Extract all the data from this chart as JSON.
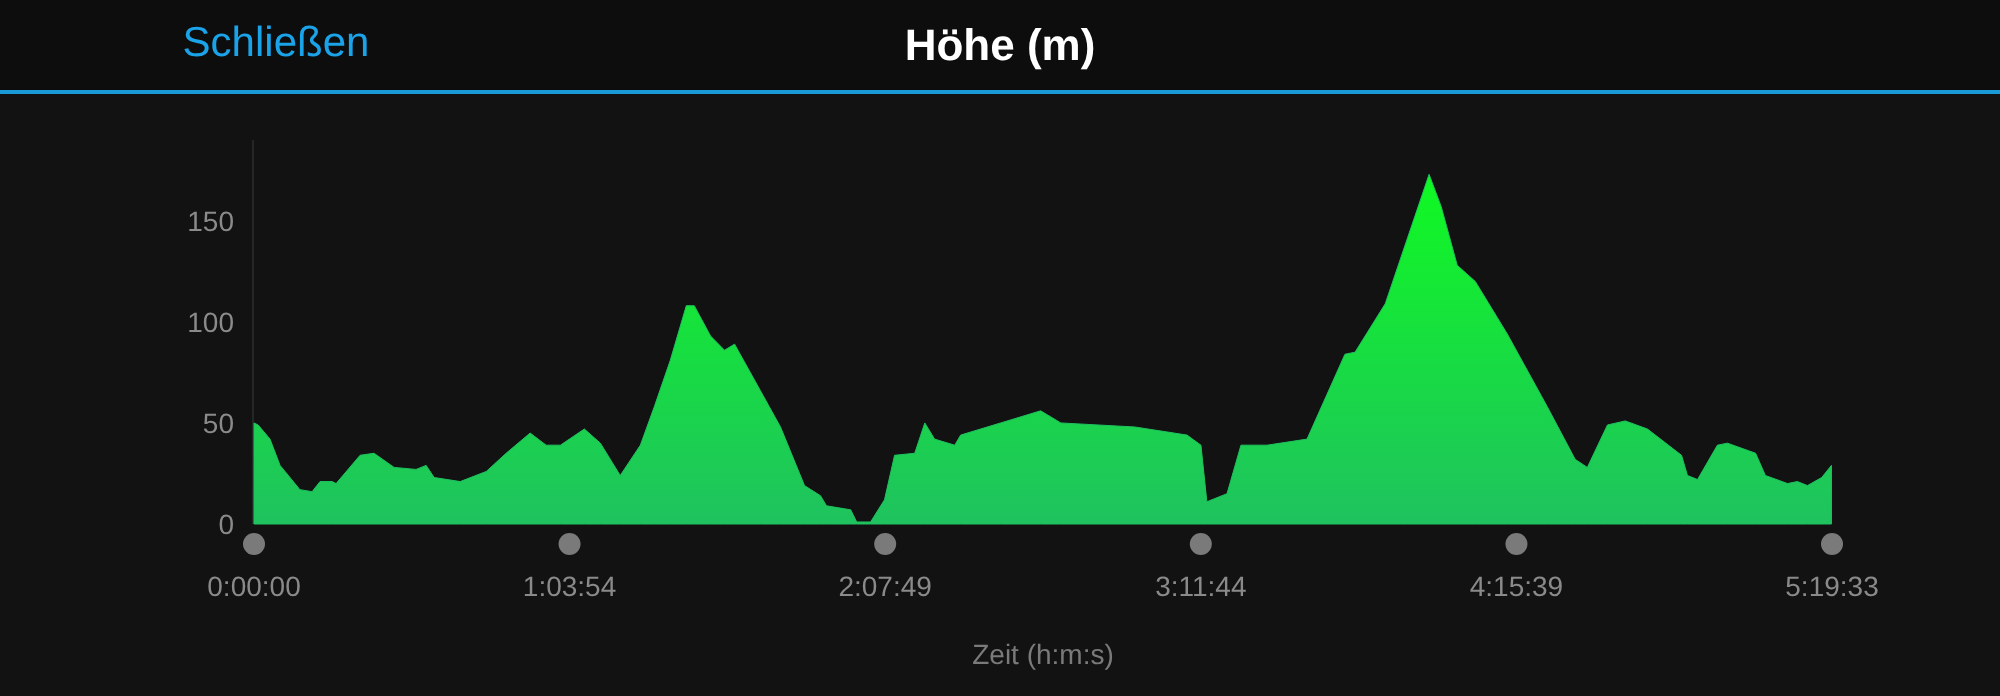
{
  "chart_data": {
    "type": "area",
    "title": "Höhe (m)",
    "xlabel": "Zeit (h:m:s)",
    "annotations": [
      "Schließen"
    ],
    "xlim": [
      0,
      5.32583
    ],
    "ylim": [
      0,
      190
    ],
    "xticks": [
      {
        "value": 0,
        "label": "0:00:00"
      },
      {
        "value": 1.065,
        "label": "1:03:54"
      },
      {
        "value": 2.13028,
        "label": "2:07:49"
      },
      {
        "value": 3.19556,
        "label": "3:11:44"
      },
      {
        "value": 4.26083,
        "label": "4:15:39"
      },
      {
        "value": 5.32583,
        "label": "5:19:33"
      }
    ],
    "yticks": [
      0,
      50,
      100,
      150
    ],
    "grid": false,
    "series": [
      {
        "color": "#1fc25f",
        "x": [
          0,
          0.014,
          0.054,
          0.088,
          0.155,
          0.196,
          0.223,
          0.264,
          0.277,
          0.358,
          0.405,
          0.473,
          0.547,
          0.581,
          0.608,
          0.696,
          0.784,
          0.851,
          0.932,
          0.986,
          1.034,
          1.115,
          1.169,
          1.236,
          1.304,
          1.351,
          1.405,
          1.459,
          1.486,
          1.541,
          1.588,
          1.622,
          1.709,
          1.777,
          1.858,
          1.912,
          1.932,
          2.014,
          2.034,
          2.081,
          2.128,
          2.162,
          2.23,
          2.264,
          2.297,
          2.365,
          2.385,
          2.52,
          2.655,
          2.723,
          2.973,
          3.149,
          3.196,
          3.216,
          3.284,
          3.331,
          3.419,
          3.554,
          3.682,
          3.716,
          3.818,
          3.892,
          3.966,
          4.007,
          4.061,
          4.122,
          4.23,
          4.365,
          4.459,
          4.5,
          4.568,
          4.628,
          4.703,
          4.818,
          4.838,
          4.872,
          4.939,
          4.973,
          5.068,
          5.101,
          5.176,
          5.209,
          5.243,
          5.291,
          5.324
        ],
        "values": [
          50,
          49,
          42,
          29,
          17,
          16,
          21,
          21,
          20,
          34,
          35,
          28,
          27,
          29,
          23,
          21,
          26,
          35,
          45,
          39,
          39,
          47,
          40,
          24,
          39,
          58,
          81,
          108,
          108,
          93,
          86,
          89,
          66,
          48,
          19,
          14,
          9,
          7,
          1,
          1,
          12,
          34,
          35,
          50,
          42,
          39,
          44,
          50,
          56,
          50,
          48,
          44,
          39,
          11,
          15,
          39,
          39,
          42,
          84,
          85,
          109,
          141,
          173,
          157,
          128,
          120,
          94,
          58,
          32,
          28,
          49,
          51,
          47,
          34,
          24,
          22,
          39,
          40,
          35,
          24,
          20,
          21,
          19,
          23,
          29
        ]
      }
    ]
  }
}
